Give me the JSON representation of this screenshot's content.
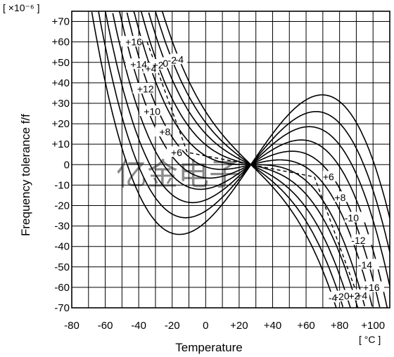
{
  "chart_data": {
    "type": "line",
    "title": "",
    "xlabel": "Temperature",
    "ylabel": "Frequency tolerance  f/f",
    "x_unit": "[ °C ]",
    "y_unit": "[ ×10⁻⁶ ]",
    "xlim": [
      -80,
      110
    ],
    "ylim": [
      -70,
      75
    ],
    "x_ticks": [
      "-80",
      "-60",
      "-40",
      "-20",
      "0",
      "+20",
      "+40",
      "+60",
      "+80",
      "+100"
    ],
    "y_ticks": [
      "+70",
      "+60",
      "+50",
      "+40",
      "+30",
      "+20",
      "+10",
      "0",
      "-10",
      "-20",
      "-30",
      "-40",
      "-50",
      "-60",
      "-70"
    ],
    "grid": true,
    "inflection_point": {
      "x": 27,
      "y": 0
    },
    "series": [
      {
        "name": "+16",
        "left_label": "+16",
        "right_label": "+16",
        "turning_points": [
          {
            "x": -35,
            "y": 60
          },
          {
            "x": 89,
            "y": -60
          }
        ]
      },
      {
        "name": "+14",
        "left_label": "+14",
        "right_label": "-14",
        "turning_points": [
          {
            "x": -32,
            "y": 49
          },
          {
            "x": 86,
            "y": -49
          }
        ]
      },
      {
        "name": "+12",
        "left_label": "+12",
        "right_label": "-12",
        "turning_points": [
          {
            "x": -28,
            "y": 37
          },
          {
            "x": 82,
            "y": -37
          }
        ]
      },
      {
        "name": "+10",
        "left_label": "+10",
        "right_label": "-10",
        "turning_points": [
          {
            "x": -24,
            "y": 26
          },
          {
            "x": 78,
            "y": -26
          }
        ]
      },
      {
        "name": "+8",
        "left_label": "+8",
        "right_label": "+8",
        "turning_points": [
          {
            "x": -18,
            "y": 16
          },
          {
            "x": 72,
            "y": -16
          }
        ]
      },
      {
        "name": "+6",
        "left_label": "+6",
        "right_label": "+6",
        "turning_points": [
          {
            "x": -11,
            "y": 6
          },
          {
            "x": 65,
            "y": -6
          }
        ]
      },
      {
        "name": "+4",
        "left_label": "+4",
        "right_label": "+4",
        "turning_points": []
      },
      {
        "name": "+2",
        "left_label": "+2",
        "right_label": "+2",
        "turning_points": []
      },
      {
        "name": "0",
        "left_label": "0",
        "right_label": "0",
        "turning_points": []
      },
      {
        "name": "-2",
        "left_label": "-2",
        "right_label": "-2",
        "turning_points": []
      },
      {
        "name": "-4",
        "left_label": "-4",
        "right_label": "-4",
        "turning_points": []
      }
    ],
    "series_shape": {
      "tangent_slope_ppm_per_degC": [
        1.2,
        1.0,
        0.8,
        0.6,
        0.4,
        0.2,
        0,
        -0.2,
        -0.4,
        -0.6,
        -0.8
      ],
      "cubic_coeff": -0.00022
    },
    "turning_point_locus": {
      "style": "dashed",
      "points": [
        {
          "x": -35,
          "y": 60
        },
        {
          "x": -11,
          "y": 6
        },
        {
          "x": 27,
          "y": 0
        },
        {
          "x": 65,
          "y": -6
        },
        {
          "x": 89,
          "y": -60
        }
      ]
    },
    "watermark": "亿金电子"
  },
  "colors": {
    "curve": "#000000",
    "grid": "#000000",
    "watermark": "#f0a078"
  }
}
